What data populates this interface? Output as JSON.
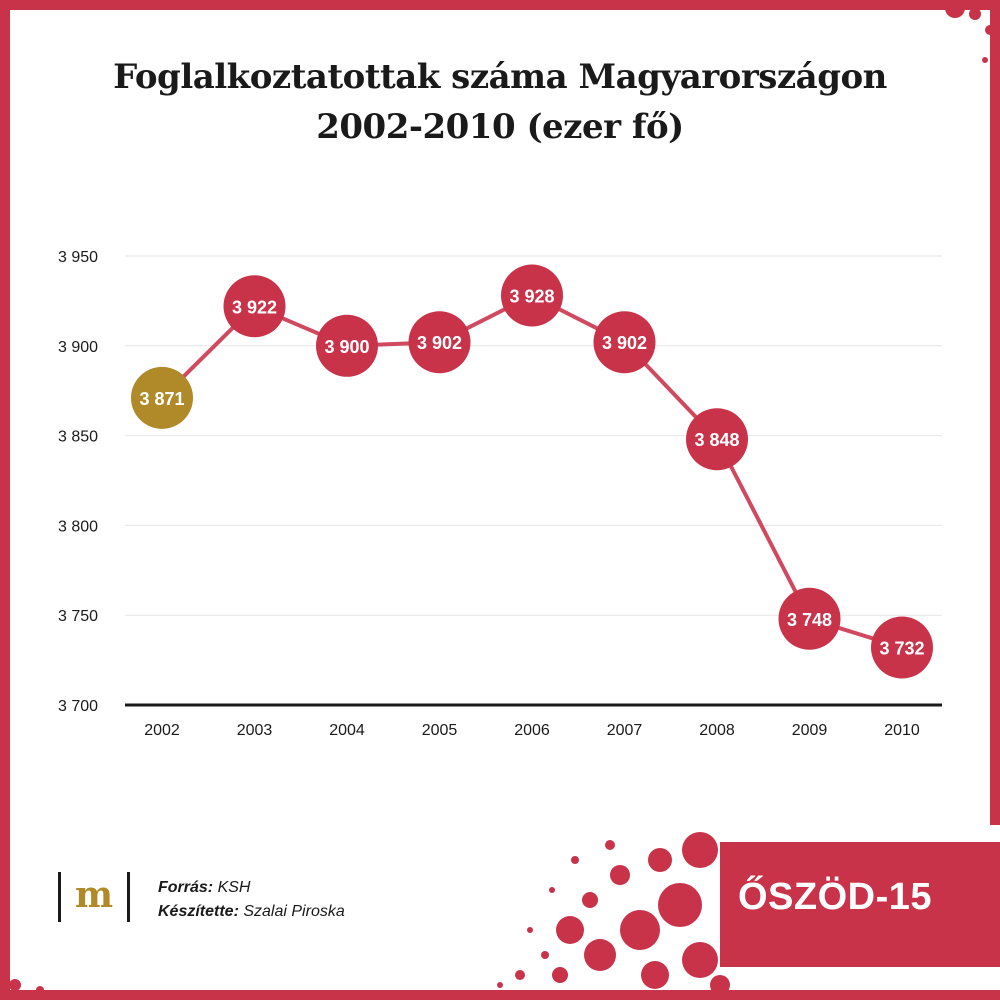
{
  "title_line1": "Foglalkoztatottak száma Magyarországon",
  "title_line2": "2002-2010 (ezer fő)",
  "footer": {
    "logo_letter": "m",
    "source_label": "Forrás:",
    "source_value": "KSH",
    "author_label": "Készítette:",
    "author_value": "Szalai Piroska",
    "brand": "ŐSZÖD-15"
  },
  "colors": {
    "accent": "#c8334a",
    "highlight": "#b08a28",
    "line": "#d1495f",
    "axis": "#1a1a1a",
    "grid": "#e6e6e6"
  },
  "chart_data": {
    "type": "line",
    "title": "Foglalkoztatottak száma Magyarországon 2002-2010 (ezer fő)",
    "xlabel": "",
    "ylabel": "",
    "categories": [
      "2002",
      "2003",
      "2004",
      "2005",
      "2006",
      "2007",
      "2008",
      "2009",
      "2010"
    ],
    "values": [
      3871,
      3922,
      3900,
      3902,
      3928,
      3902,
      3848,
      3748,
      3732
    ],
    "value_labels": [
      "3 871",
      "3 922",
      "3 900",
      "3 902",
      "3 928",
      "3 902",
      "3 848",
      "3 748",
      "3 732"
    ],
    "ylim": [
      3700,
      3950
    ],
    "yticks": [
      3700,
      3750,
      3800,
      3850,
      3900,
      3950
    ],
    "ytick_labels": [
      "3 700",
      "3 750",
      "3 800",
      "3 850",
      "3 900",
      "3 950"
    ],
    "highlight_index": 0,
    "grid": true,
    "legend": "none"
  }
}
